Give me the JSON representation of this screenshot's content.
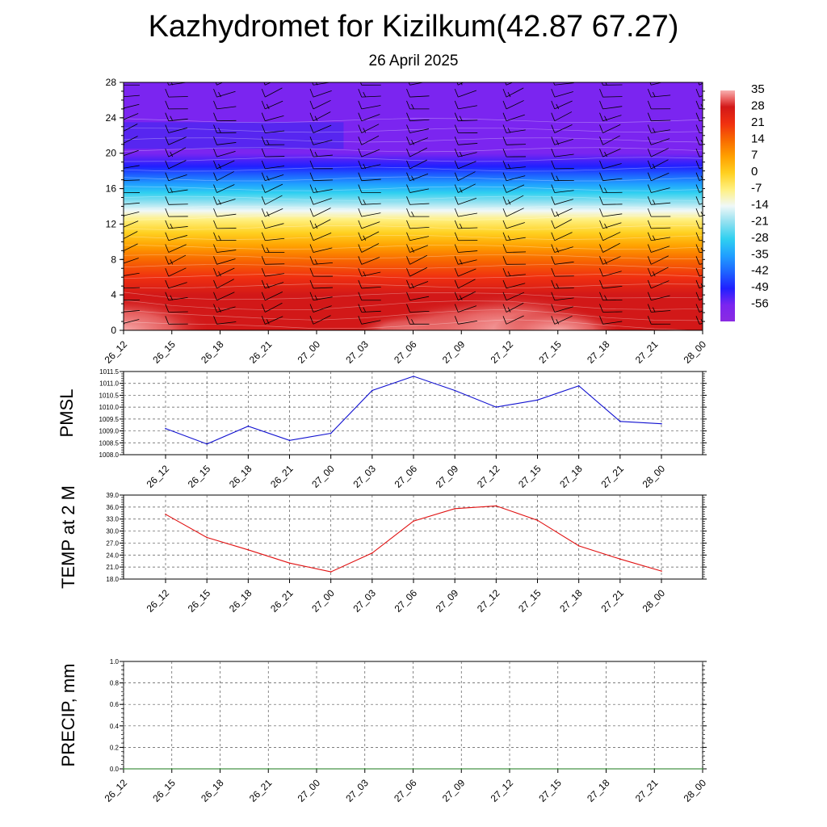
{
  "title": "Kazhydromet for Kizilkum(42.87 67.27)",
  "subtitle": "26 April 2025",
  "colors": {
    "pmsl_line": "#1010d0",
    "temp_line": "#e01010",
    "precip_line": "#1a7a1a",
    "grid": "#000000"
  },
  "chart_data": [
    {
      "type": "heatmap",
      "name": "cross-section",
      "times": [
        "26_12",
        "26_15",
        "26_18",
        "26_21",
        "27_00",
        "27_03",
        "27_06",
        "27_09",
        "27_12",
        "27_15",
        "27_18",
        "27_21",
        "28_00"
      ],
      "ylim": [
        0,
        28
      ],
      "yticks": [
        0,
        4,
        8,
        12,
        16,
        20,
        24,
        28
      ],
      "colorbar": {
        "labels": [
          "35",
          "28",
          "21",
          "14",
          "7",
          "0",
          "-7",
          "-14",
          "-21",
          "-28",
          "-35",
          "-42",
          "-49",
          "-56"
        ],
        "min": -63,
        "max": 35
      },
      "surface_temp_by_time": [
        34,
        27,
        25,
        24,
        23,
        26,
        30,
        33,
        35,
        31,
        26,
        23,
        21
      ]
    },
    {
      "type": "line",
      "name": "pmsl",
      "ylabel": "PMSL",
      "ylim": [
        1008.0,
        1011.5
      ],
      "yticks": [
        "1008.0",
        "1008.5",
        "1009.0",
        "1009.5",
        "1010.0",
        "1010.5",
        "1011.0",
        "1011.5"
      ],
      "categories": [
        "26_12",
        "26_15",
        "26_18",
        "26_21",
        "27_00",
        "27_03",
        "27_06",
        "27_09",
        "27_12",
        "27_15",
        "27_18",
        "27_21",
        "28_00"
      ],
      "values": [
        1009.1,
        1008.45,
        1009.2,
        1008.6,
        1008.9,
        1010.7,
        1011.3,
        1010.7,
        1010.0,
        1010.3,
        1010.9,
        1009.4,
        1009.3
      ]
    },
    {
      "type": "line",
      "name": "temp2m",
      "ylabel": "TEMP at 2 M",
      "ylim": [
        18.0,
        39.0
      ],
      "yticks": [
        "18.0",
        "21.0",
        "24.0",
        "27.0",
        "30.0",
        "33.0",
        "36.0",
        "39.0"
      ],
      "categories": [
        "26_12",
        "26_15",
        "26_18",
        "26_21",
        "27_00",
        "27_03",
        "27_06",
        "27_09",
        "27_12",
        "27_15",
        "27_18",
        "27_21",
        "28_00"
      ],
      "values": [
        34.2,
        28.4,
        25.3,
        22.0,
        19.8,
        24.5,
        32.5,
        35.6,
        36.3,
        32.7,
        26.3,
        23.0,
        20.0
      ]
    },
    {
      "type": "line",
      "name": "precip",
      "ylabel": "PRECIP, mm",
      "ylim": [
        0.0,
        1.0
      ],
      "yticks": [
        "0.0",
        "0.2",
        "0.4",
        "0.6",
        "0.8",
        "1.0"
      ],
      "categories": [
        "26_12",
        "26_15",
        "26_18",
        "26_21",
        "27_00",
        "27_03",
        "27_06",
        "27_09",
        "27_12",
        "27_15",
        "27_18",
        "27_21",
        "28_00"
      ],
      "values": [
        0,
        0,
        0,
        0,
        0,
        0,
        0,
        0,
        0,
        0,
        0,
        0,
        0
      ]
    }
  ]
}
